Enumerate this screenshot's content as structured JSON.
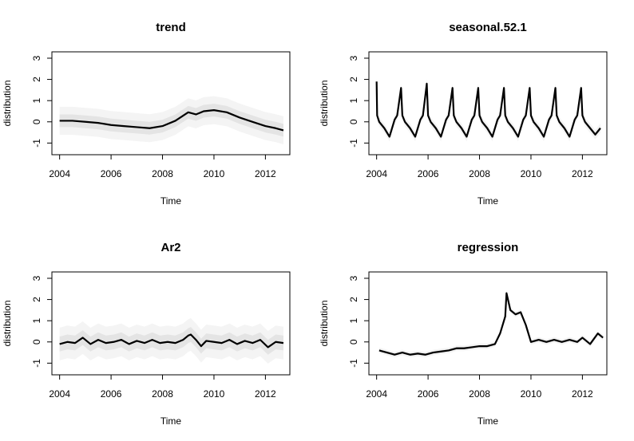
{
  "chart_data": [
    {
      "type": "line",
      "title": "trend",
      "xlabel": "Time",
      "ylabel": "distribution",
      "xlim": [
        2003.7,
        2012.95
      ],
      "ylim": [
        -1.55,
        3.3
      ],
      "xticks": [
        "2004",
        "2006",
        "2008",
        "2010",
        "2012"
      ],
      "yticks": [
        "-1",
        "0",
        "1",
        "2",
        "3"
      ],
      "band_halfwidth": 0.3,
      "series": [
        {
          "x": [
            2004.0,
            2004.5,
            2005.0,
            2005.5,
            2006.0,
            2006.5,
            2007.0,
            2007.5,
            2008.0,
            2008.5,
            2009.0,
            2009.3,
            2009.6,
            2010.0,
            2010.5,
            2011.0,
            2011.5,
            2012.0,
            2012.4,
            2012.7
          ],
          "y": [
            0.05,
            0.05,
            0.0,
            -0.05,
            -0.15,
            -0.2,
            -0.25,
            -0.3,
            -0.2,
            0.05,
            0.45,
            0.35,
            0.5,
            0.55,
            0.45,
            0.2,
            0.0,
            -0.2,
            -0.3,
            -0.4
          ]
        }
      ]
    },
    {
      "type": "line",
      "title": "seasonal.52.1",
      "xlabel": "Time",
      "ylabel": "distribution",
      "xlim": [
        2003.7,
        2012.95
      ],
      "ylim": [
        -1.55,
        3.3
      ],
      "xticks": [
        "2004",
        "2006",
        "2008",
        "2010",
        "2012"
      ],
      "yticks": [
        "-1",
        "0",
        "1",
        "2",
        "3"
      ],
      "band_halfwidth": 0.1,
      "series": [
        {
          "x": [
            2004.0,
            2004.02,
            2004.1,
            2004.3,
            2004.5,
            2004.7,
            2004.8,
            2004.95,
            2005.0,
            2005.1,
            2005.3,
            2005.5,
            2005.7,
            2005.8,
            2005.95,
            2006.0,
            2006.1,
            2006.3,
            2006.5,
            2006.7,
            2006.8,
            2006.95,
            2007.0,
            2007.1,
            2007.3,
            2007.5,
            2007.7,
            2007.8,
            2007.95,
            2008.0,
            2008.1,
            2008.3,
            2008.5,
            2008.7,
            2008.8,
            2008.95,
            2009.0,
            2009.1,
            2009.3,
            2009.5,
            2009.7,
            2009.8,
            2009.95,
            2010.0,
            2010.1,
            2010.3,
            2010.5,
            2010.7,
            2010.8,
            2010.95,
            2011.0,
            2011.1,
            2011.3,
            2011.5,
            2011.7,
            2011.8,
            2011.95,
            2012.0,
            2012.1,
            2012.3,
            2012.5,
            2012.7
          ],
          "y": [
            1.9,
            0.3,
            0.0,
            -0.3,
            -0.7,
            0.1,
            0.3,
            1.6,
            0.3,
            0.0,
            -0.3,
            -0.7,
            0.1,
            0.3,
            1.8,
            0.3,
            0.0,
            -0.3,
            -0.7,
            0.1,
            0.3,
            1.6,
            0.3,
            0.0,
            -0.3,
            -0.7,
            0.1,
            0.3,
            1.6,
            0.3,
            0.0,
            -0.3,
            -0.7,
            0.1,
            0.3,
            1.6,
            0.3,
            0.0,
            -0.3,
            -0.7,
            0.1,
            0.3,
            1.6,
            0.3,
            0.0,
            -0.3,
            -0.7,
            0.1,
            0.3,
            1.6,
            0.3,
            0.0,
            -0.3,
            -0.7,
            0.1,
            0.3,
            1.6,
            0.3,
            0.0,
            -0.3,
            -0.6,
            -0.3
          ]
        }
      ]
    },
    {
      "type": "line",
      "title": "Ar2",
      "xlabel": "Time",
      "ylabel": "distribution",
      "xlim": [
        2003.7,
        2012.95
      ],
      "ylim": [
        -1.55,
        3.3
      ],
      "xticks": [
        "2004",
        "2006",
        "2008",
        "2010",
        "2012"
      ],
      "yticks": [
        "-1",
        "0",
        "1",
        "2",
        "3"
      ],
      "band_halfwidth": 0.35,
      "series": [
        {
          "x": [
            2004.0,
            2004.3,
            2004.6,
            2004.9,
            2005.2,
            2005.5,
            2005.8,
            2006.1,
            2006.4,
            2006.7,
            2007.0,
            2007.3,
            2007.6,
            2007.9,
            2008.2,
            2008.5,
            2008.8,
            2009.0,
            2009.1,
            2009.3,
            2009.5,
            2009.7,
            2010.0,
            2010.3,
            2010.6,
            2010.9,
            2011.2,
            2011.5,
            2011.8,
            2012.1,
            2012.4,
            2012.7
          ],
          "y": [
            -0.1,
            0.0,
            -0.05,
            0.2,
            -0.1,
            0.1,
            -0.05,
            0.0,
            0.1,
            -0.1,
            0.05,
            -0.05,
            0.1,
            -0.05,
            0.0,
            -0.05,
            0.1,
            0.3,
            0.35,
            0.1,
            -0.2,
            0.05,
            0.0,
            -0.05,
            0.1,
            -0.1,
            0.05,
            -0.05,
            0.1,
            -0.25,
            0.0,
            -0.05
          ]
        }
      ]
    },
    {
      "type": "line",
      "title": "regression",
      "xlabel": "Time",
      "ylabel": "distribution",
      "xlim": [
        2003.7,
        2012.95
      ],
      "ylim": [
        -1.55,
        3.3
      ],
      "xticks": [
        "2004",
        "2006",
        "2008",
        "2010",
        "2012"
      ],
      "yticks": [
        "-1",
        "0",
        "1",
        "2",
        "3"
      ],
      "band_halfwidth": 0.06,
      "series": [
        {
          "x": [
            2004.1,
            2004.4,
            2004.7,
            2005.0,
            2005.3,
            2005.6,
            2005.9,
            2006.2,
            2006.5,
            2006.8,
            2007.1,
            2007.4,
            2007.7,
            2008.0,
            2008.3,
            2008.6,
            2008.8,
            2009.0,
            2009.05,
            2009.2,
            2009.4,
            2009.6,
            2009.8,
            2010.0,
            2010.3,
            2010.6,
            2010.9,
            2011.2,
            2011.5,
            2011.8,
            2012.0,
            2012.3,
            2012.6,
            2012.8
          ],
          "y": [
            -0.4,
            -0.5,
            -0.6,
            -0.5,
            -0.6,
            -0.55,
            -0.6,
            -0.5,
            -0.45,
            -0.4,
            -0.3,
            -0.3,
            -0.25,
            -0.2,
            -0.2,
            -0.1,
            0.4,
            1.2,
            2.3,
            1.5,
            1.3,
            1.4,
            0.8,
            0.0,
            0.1,
            0.0,
            0.1,
            0.0,
            0.1,
            0.0,
            0.2,
            -0.1,
            0.4,
            0.2
          ]
        }
      ]
    }
  ]
}
